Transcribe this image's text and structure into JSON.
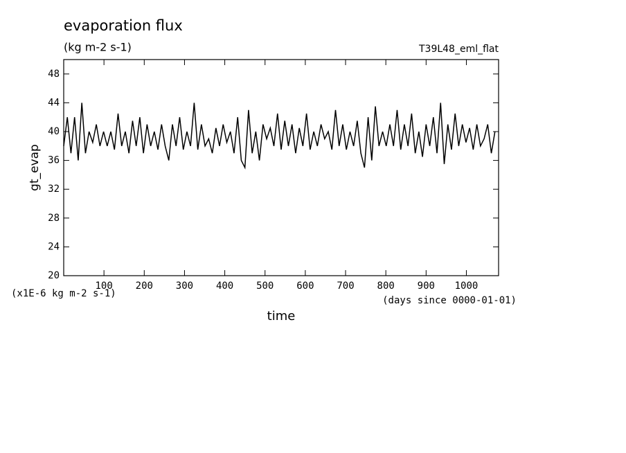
{
  "chart_data": {
    "type": "line",
    "title": "evaporation flux",
    "subtitle": "(kg m-2 s-1)",
    "annotation": "T39L48_eml_flat",
    "y_label": "gt_evap",
    "y_unit": "(x1E-6 kg m-2 s-1)",
    "x_label": "time",
    "x_unit": "(days since 0000-01-01)",
    "xlim": [
      0,
      1080
    ],
    "xticks": [
      100,
      200,
      300,
      400,
      500,
      600,
      700,
      800,
      900,
      1000
    ],
    "ylim": [
      20,
      50
    ],
    "yticks": [
      20,
      24,
      28,
      32,
      36,
      40,
      44,
      48
    ],
    "x": [
      0,
      9,
      18,
      27,
      36,
      45,
      54,
      63,
      72,
      81,
      90,
      99,
      108,
      117,
      126,
      135,
      144,
      153,
      162,
      171,
      180,
      189,
      198,
      207,
      216,
      225,
      234,
      243,
      252,
      261,
      270,
      279,
      288,
      297,
      306,
      315,
      324,
      333,
      342,
      351,
      360,
      369,
      378,
      387,
      396,
      405,
      414,
      423,
      432,
      441,
      450,
      459,
      468,
      477,
      486,
      495,
      504,
      513,
      522,
      531,
      540,
      549,
      558,
      567,
      576,
      585,
      594,
      603,
      612,
      621,
      630,
      639,
      648,
      657,
      666,
      675,
      684,
      693,
      702,
      711,
      720,
      729,
      738,
      747,
      756,
      765,
      774,
      783,
      792,
      801,
      810,
      819,
      828,
      837,
      846,
      855,
      864,
      873,
      882,
      891,
      900,
      909,
      918,
      927,
      936,
      945,
      954,
      963,
      972,
      981,
      990,
      999,
      1008,
      1017,
      1026,
      1035,
      1044,
      1053,
      1062,
      1071
    ],
    "series": [
      {
        "color": "#000000",
        "values": [
          38,
          42,
          37,
          42,
          36,
          44,
          37,
          40,
          38.5,
          41,
          38,
          40,
          38,
          40,
          37.5,
          42.5,
          38,
          40,
          37,
          41.5,
          38,
          42,
          37,
          41,
          38,
          40,
          37.5,
          41,
          38,
          36,
          41,
          38,
          42,
          37.5,
          40,
          38,
          44,
          37.5,
          41,
          38,
          39,
          37,
          40.5,
          38,
          41,
          38.5,
          40,
          37,
          42,
          36,
          35,
          43,
          37,
          40,
          36,
          41,
          39,
          40.5,
          38,
          42.5,
          37.5,
          41.5,
          38,
          41,
          37,
          40.5,
          38,
          42.5,
          37.5,
          40,
          38,
          41,
          39,
          40,
          37.5,
          43,
          38,
          41,
          37.5,
          40,
          38,
          41.5,
          37,
          35,
          42,
          36,
          43.5,
          38,
          40,
          38,
          41,
          38,
          43,
          37.5,
          41,
          38,
          42.5,
          37,
          40,
          36.5,
          41,
          38,
          42,
          37,
          44,
          35.5,
          41,
          37.5,
          42.5,
          38,
          41,
          38.5,
          40.5,
          37.5,
          41,
          38,
          39,
          41,
          37,
          40
        ]
      }
    ]
  }
}
